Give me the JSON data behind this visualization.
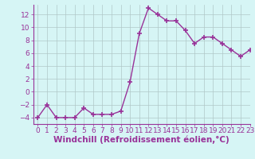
{
  "x": [
    0,
    1,
    2,
    3,
    4,
    5,
    6,
    7,
    8,
    9,
    10,
    11,
    12,
    13,
    14,
    15,
    16,
    17,
    18,
    19,
    20,
    21,
    22,
    23
  ],
  "y": [
    -4,
    -2,
    -4,
    -4,
    -4,
    -2.5,
    -3.5,
    -3.5,
    -3.5,
    -3,
    1.5,
    9,
    13,
    12,
    11,
    11,
    9.5,
    7.5,
    8.5,
    8.5,
    7.5,
    6.5,
    5.5,
    6.5
  ],
  "line_color": "#993399",
  "marker": "+",
  "marker_size": 4,
  "marker_color": "#993399",
  "bg_color": "#d6f5f5",
  "grid_color": "#b0c8c8",
  "xlabel": "Windchill (Refroidissement éolien,°C)",
  "xlim": [
    -0.5,
    23
  ],
  "ylim": [
    -5,
    13.5
  ],
  "yticks": [
    -4,
    -2,
    0,
    2,
    4,
    6,
    8,
    10,
    12
  ],
  "xticks": [
    0,
    1,
    2,
    3,
    4,
    5,
    6,
    7,
    8,
    9,
    10,
    11,
    12,
    13,
    14,
    15,
    16,
    17,
    18,
    19,
    20,
    21,
    22,
    23
  ],
  "xlabel_fontsize": 7.5,
  "tick_fontsize": 6.5,
  "tick_color": "#993399",
  "label_color": "#993399",
  "spine_color": "#993399",
  "line_width": 1.0
}
